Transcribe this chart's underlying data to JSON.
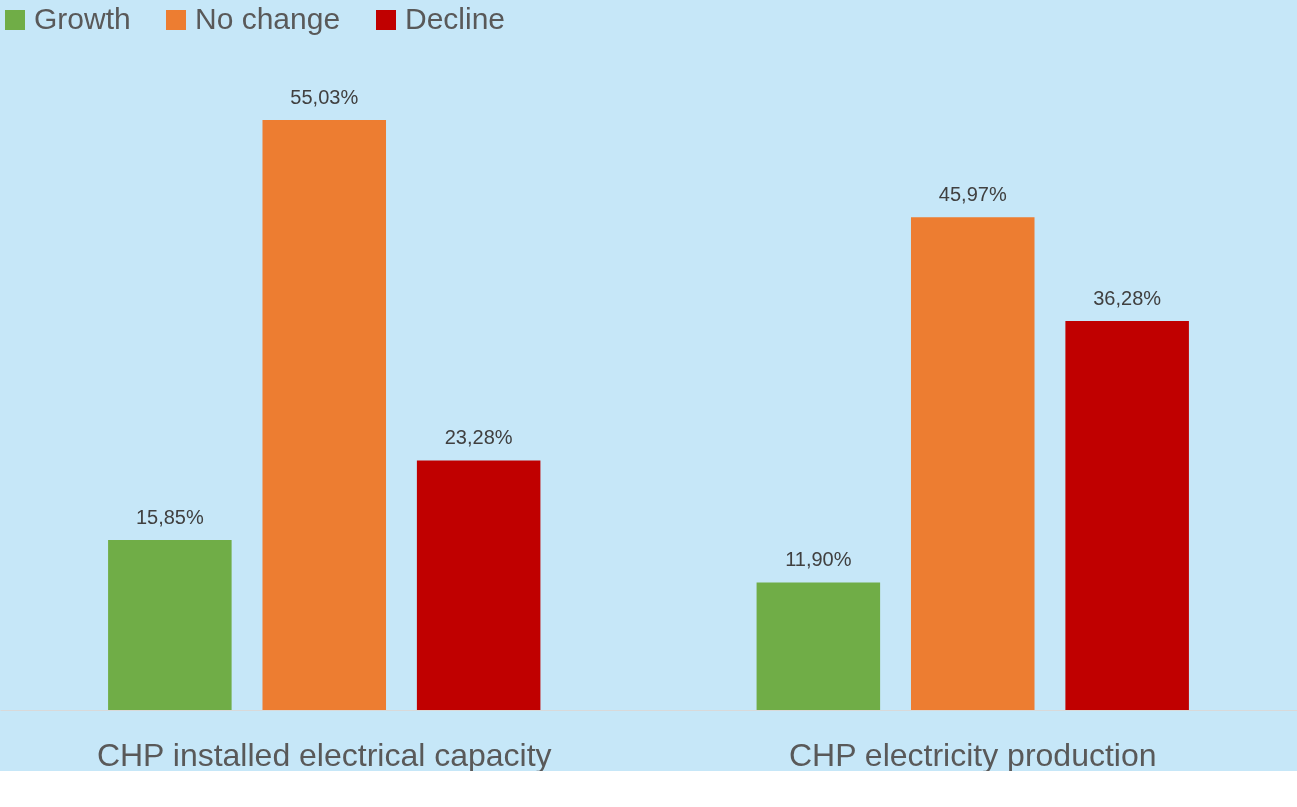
{
  "chart_data": {
    "type": "bar",
    "categories": [
      "CHP installed electrical capacity",
      "CHP electricity production"
    ],
    "legend": "top",
    "series": [
      {
        "name": "Growth",
        "color": "#70ad47",
        "values": [
          15.85,
          11.9
        ],
        "value_labels": [
          "15,85%",
          "11,90%"
        ]
      },
      {
        "name": "No change",
        "color": "#ed7d31",
        "values": [
          55.03,
          45.97
        ],
        "value_labels": [
          "55,03%",
          "45,97%"
        ]
      },
      {
        "name": "Decline",
        "color": "#c00000",
        "values": [
          23.28,
          36.28
        ],
        "value_labels": [
          "23,28%",
          "36,28%"
        ]
      }
    ]
  }
}
